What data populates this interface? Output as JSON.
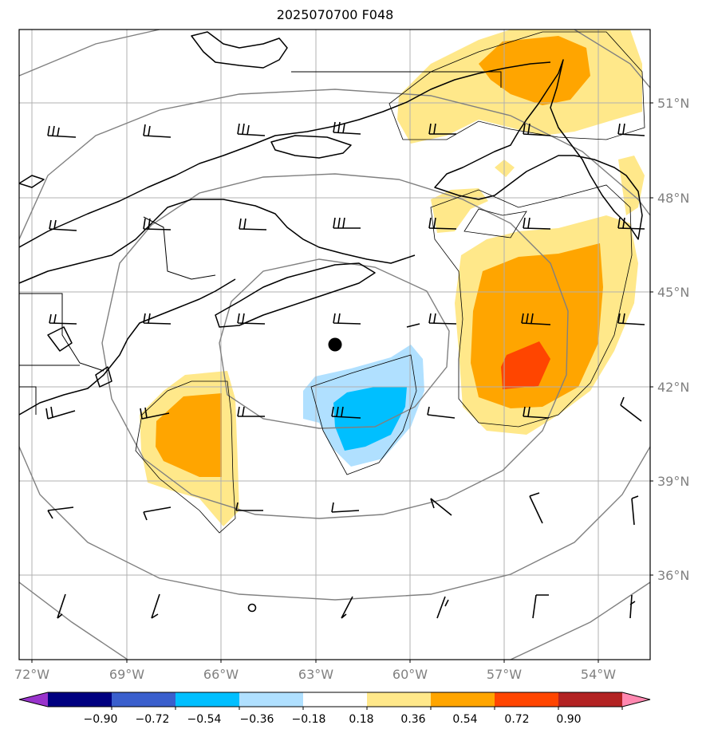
{
  "title": "2025070700 F048",
  "colors": {
    "land_line": "#000000",
    "grid": "#b0b0b0",
    "range_rings": "#808080",
    "tick_label": "#808080"
  },
  "lon_labels": [
    "72°W",
    "69°W",
    "66°W",
    "63°W",
    "60°W",
    "57°W",
    "54°W"
  ],
  "lat_labels": [
    "51°N",
    "48°N",
    "45°N",
    "42°N",
    "39°N",
    "36°N"
  ],
  "colorbar": {
    "ticks": [
      "−0.90",
      "−0.72",
      "−0.54",
      "−0.36",
      "−0.18",
      "0.18",
      "0.36",
      "0.54",
      "0.72",
      "0.90"
    ],
    "bins": [
      {
        "color": "#9933cc"
      },
      {
        "color": "#000080"
      },
      {
        "color": "#3a5fcd"
      },
      {
        "color": "#00bfff"
      },
      {
        "color": "#b0e0ff"
      },
      {
        "color": "#ffffff"
      },
      {
        "color": "#ffe88a"
      },
      {
        "color": "#ffa500"
      },
      {
        "color": "#ff4500"
      },
      {
        "color": "#b22222"
      },
      {
        "color": "#ff88b0"
      }
    ]
  },
  "center_marker": {
    "name": "center-point",
    "lon": -62.3,
    "lat": 43.3
  }
}
